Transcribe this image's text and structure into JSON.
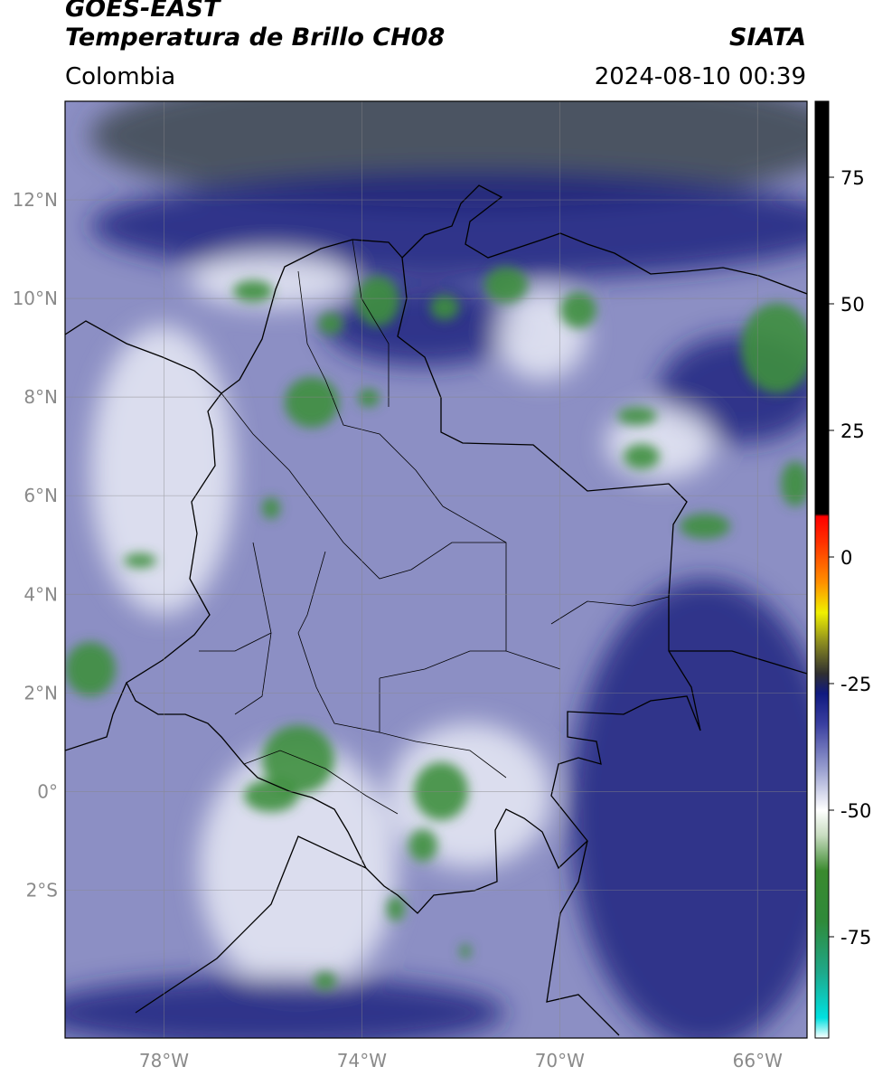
{
  "header": {
    "satellite": "GOES-EAST",
    "product": "Temperatura de Brillo CH08",
    "agency": "SIATA",
    "region": "Colombia",
    "datetime": "2024-08-10 00:39"
  },
  "map": {
    "lon_range": [
      -80,
      -65
    ],
    "lat_range": [
      -5,
      14
    ],
    "lon_ticks": [
      {
        "value": -78,
        "label": "78°W"
      },
      {
        "value": -74,
        "label": "74°W"
      },
      {
        "value": -70,
        "label": "70°W"
      },
      {
        "value": -66,
        "label": "66°W"
      }
    ],
    "lat_ticks": [
      {
        "value": 12,
        "label": "12°N"
      },
      {
        "value": 10,
        "label": "10°N"
      },
      {
        "value": 8,
        "label": "8°N"
      },
      {
        "value": 6,
        "label": "6°N"
      },
      {
        "value": 4,
        "label": "4°N"
      },
      {
        "value": 2,
        "label": "2°N"
      },
      {
        "value": 0,
        "label": "0°"
      },
      {
        "value": -2,
        "label": "2°S"
      }
    ],
    "colors": {
      "background": "#8c8fc4",
      "deep_blue": "#1e2580",
      "dark_olive": "#3f4a52",
      "green": "#3f8f3f",
      "light": "#e9ebf6",
      "grid": "#8c8c8c"
    }
  },
  "colorbar": {
    "range": [
      -95,
      90
    ],
    "ticks": [
      {
        "value": 75,
        "label": "75"
      },
      {
        "value": 50,
        "label": "50"
      },
      {
        "value": 25,
        "label": "25"
      },
      {
        "value": 0,
        "label": "0"
      },
      {
        "value": -25,
        "label": "-25"
      },
      {
        "value": -50,
        "label": "-50"
      },
      {
        "value": -75,
        "label": "-75"
      }
    ],
    "stops": [
      {
        "value": -95,
        "color": "#ffffff"
      },
      {
        "value": -91,
        "color": "#00e0e0"
      },
      {
        "value": -82,
        "color": "#1fa88a"
      },
      {
        "value": -72,
        "color": "#2f8a3a"
      },
      {
        "value": -62,
        "color": "#3a8a2e"
      },
      {
        "value": -55,
        "color": "#c8dcc0"
      },
      {
        "value": -50,
        "color": "#ffffff"
      },
      {
        "value": -42,
        "color": "#9aa0d0"
      },
      {
        "value": -33,
        "color": "#3a3fa0"
      },
      {
        "value": -27,
        "color": "#101a80"
      },
      {
        "value": -23,
        "color": "#303030"
      },
      {
        "value": -17,
        "color": "#8a8a20"
      },
      {
        "value": -11,
        "color": "#f0f000"
      },
      {
        "value": -5,
        "color": "#ff9000"
      },
      {
        "value": 3,
        "color": "#ff3000"
      },
      {
        "value": 8,
        "color": "#ff0000"
      },
      {
        "value": 8.5,
        "color": "#000000"
      },
      {
        "value": 90,
        "color": "#000000"
      }
    ]
  }
}
